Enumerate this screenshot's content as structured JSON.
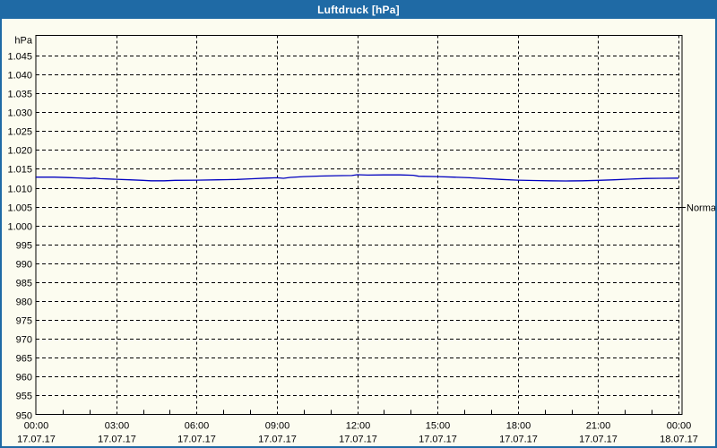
{
  "window": {
    "title": "Luftdruck [hPa]"
  },
  "colors": {
    "titlebar": "#1f6aa5",
    "window_border": "#1f6aa5",
    "background": "#fcfcf0",
    "plot_border": "#000000",
    "grid": "#000000",
    "series_line": "#0000bf",
    "title_text": "#ffffff"
  },
  "chart_data": {
    "type": "line",
    "title": "Luftdruck [hPa]",
    "ylabel": "hPa",
    "ylim": [
      950,
      1050
    ],
    "grid": "dashed",
    "legend_position": "none",
    "y_ticks": [
      {
        "value": 1045,
        "label": "1.045"
      },
      {
        "value": 1040,
        "label": "1.040"
      },
      {
        "value": 1035,
        "label": "1.035"
      },
      {
        "value": 1030,
        "label": "1.030"
      },
      {
        "value": 1025,
        "label": "1.025"
      },
      {
        "value": 1020,
        "label": "1.020"
      },
      {
        "value": 1015,
        "label": "1.015"
      },
      {
        "value": 1010,
        "label": "1.010"
      },
      {
        "value": 1005,
        "label": "1.005"
      },
      {
        "value": 1000,
        "label": "1.000"
      },
      {
        "value": 995,
        "label": "995"
      },
      {
        "value": 990,
        "label": "990"
      },
      {
        "value": 985,
        "label": "985"
      },
      {
        "value": 980,
        "label": "980"
      },
      {
        "value": 975,
        "label": "975"
      },
      {
        "value": 970,
        "label": "970"
      },
      {
        "value": 965,
        "label": "965"
      },
      {
        "value": 960,
        "label": "960"
      },
      {
        "value": 955,
        "label": "955"
      },
      {
        "value": 950,
        "label": "950"
      }
    ],
    "x_ticks": [
      {
        "hour": 0,
        "time": "00:00",
        "date": "17.07.17"
      },
      {
        "hour": 3,
        "time": "03:00",
        "date": "17.07.17"
      },
      {
        "hour": 6,
        "time": "06:00",
        "date": "17.07.17"
      },
      {
        "hour": 9,
        "time": "09:00",
        "date": "17.07.17"
      },
      {
        "hour": 12,
        "time": "12:00",
        "date": "17.07.17"
      },
      {
        "hour": 15,
        "time": "15:00",
        "date": "17.07.17"
      },
      {
        "hour": 18,
        "time": "18:00",
        "date": "17.07.17"
      },
      {
        "hour": 21,
        "time": "21:00",
        "date": "17.07.17"
      },
      {
        "hour": 24,
        "time": "00:00",
        "date": "18.07.17"
      }
    ],
    "minor_tick_every_hours": 1,
    "series": [
      {
        "name": "Luftdruck",
        "color": "#0000bf",
        "points": [
          [
            0.0,
            1012.8
          ],
          [
            0.7,
            1012.8
          ],
          [
            1.2,
            1012.7
          ],
          [
            1.6,
            1012.6
          ],
          [
            2.0,
            1012.45
          ],
          [
            2.2,
            1012.55
          ],
          [
            2.4,
            1012.4
          ],
          [
            3.0,
            1012.25
          ],
          [
            3.5,
            1012.1
          ],
          [
            4.0,
            1011.95
          ],
          [
            4.3,
            1011.85
          ],
          [
            4.8,
            1011.85
          ],
          [
            5.2,
            1011.95
          ],
          [
            6.0,
            1012.0
          ],
          [
            6.8,
            1012.1
          ],
          [
            7.5,
            1012.2
          ],
          [
            8.0,
            1012.35
          ],
          [
            8.6,
            1012.55
          ],
          [
            9.0,
            1012.65
          ],
          [
            9.25,
            1012.5
          ],
          [
            9.5,
            1012.75
          ],
          [
            10.0,
            1012.95
          ],
          [
            10.6,
            1013.1
          ],
          [
            11.2,
            1013.2
          ],
          [
            11.8,
            1013.25
          ],
          [
            12.0,
            1013.45
          ],
          [
            12.4,
            1013.35
          ],
          [
            13.0,
            1013.4
          ],
          [
            13.6,
            1013.4
          ],
          [
            14.1,
            1013.3
          ],
          [
            14.3,
            1013.05
          ],
          [
            15.0,
            1012.95
          ],
          [
            15.6,
            1012.8
          ],
          [
            16.2,
            1012.65
          ],
          [
            16.8,
            1012.4
          ],
          [
            17.4,
            1012.2
          ],
          [
            18.0,
            1012.0
          ],
          [
            18.6,
            1011.9
          ],
          [
            19.2,
            1011.85
          ],
          [
            19.8,
            1011.8
          ],
          [
            20.4,
            1011.85
          ],
          [
            21.0,
            1011.95
          ],
          [
            21.6,
            1012.1
          ],
          [
            22.2,
            1012.3
          ],
          [
            22.8,
            1012.45
          ],
          [
            23.3,
            1012.5
          ],
          [
            24.0,
            1012.55
          ]
        ]
      }
    ],
    "annotations": [
      {
        "label": "Normal",
        "value": 1005,
        "side": "right"
      }
    ]
  }
}
